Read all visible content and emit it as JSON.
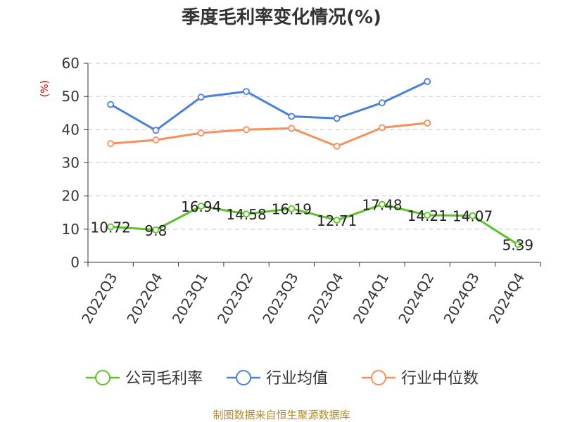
{
  "chart_data": {
    "type": "line",
    "title": "季度毛利率变化情况(%)",
    "ylabel": "(%)",
    "xlabel": "",
    "categories": [
      "2022Q3",
      "2022Q4",
      "2023Q1",
      "2023Q2",
      "2023Q3",
      "2023Q4",
      "2024Q1",
      "2024Q2",
      "2024Q3",
      "2024Q4"
    ],
    "ylim": [
      0,
      60
    ],
    "yticks": [
      0,
      10,
      20,
      30,
      40,
      50,
      60
    ],
    "grid": true,
    "legend_position": "bottom",
    "series": [
      {
        "name": "公司毛利率",
        "color": "#5bc424",
        "labeled": true,
        "values": [
          10.72,
          9.8,
          16.94,
          14.58,
          16.19,
          12.71,
          17.48,
          14.21,
          14.07,
          5.39
        ],
        "labels": [
          "10.72",
          "9.8",
          "16.94",
          "14.58",
          "16.19",
          "12.71",
          "17.48",
          "14.21",
          "14.07",
          "5.39"
        ]
      },
      {
        "name": "行业均值",
        "color": "#4a7fdc",
        "labeled": false,
        "values": [
          47.6,
          39.8,
          49.8,
          51.5,
          44.0,
          43.4,
          48.1,
          54.5,
          null,
          null
        ]
      },
      {
        "name": "行业中位数",
        "color": "#f78f5b",
        "labeled": false,
        "values": [
          35.8,
          36.9,
          39.0,
          40.0,
          40.4,
          35.0,
          40.6,
          42.0,
          null,
          null
        ]
      }
    ]
  },
  "source_text": "制图数据来自恒生聚源数据库"
}
